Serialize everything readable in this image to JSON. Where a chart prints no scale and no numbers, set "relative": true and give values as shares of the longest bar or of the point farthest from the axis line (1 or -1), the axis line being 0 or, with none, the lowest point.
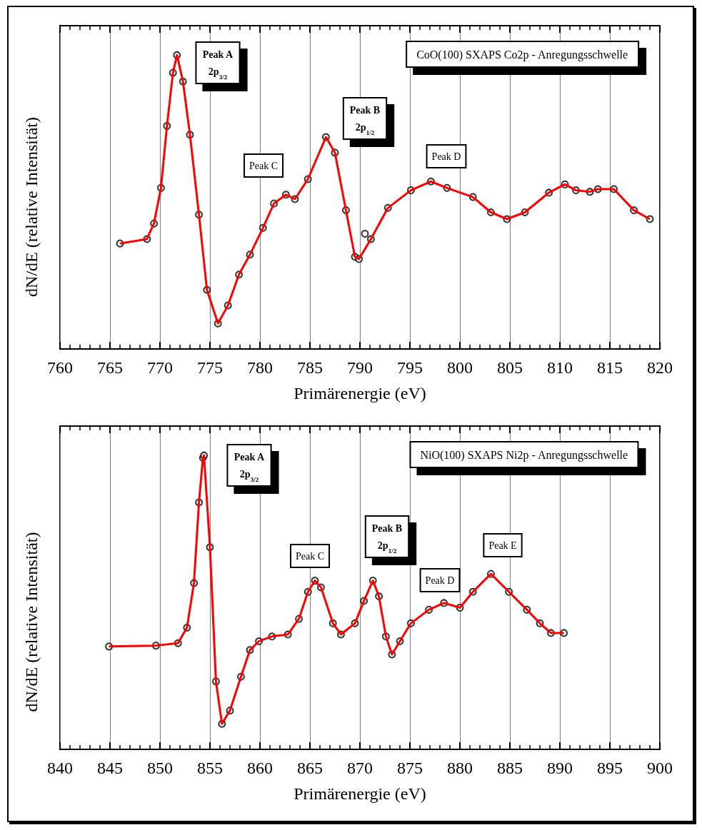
{
  "chart_data": [
    {
      "type": "scatter",
      "title": "CoO(100) SXAPS Co2p - Anregungsschwelle",
      "xlabel": "Primärenergie (eV)",
      "ylabel": "dN/dE (relative Intensität)",
      "relative": true,
      "xlim": [
        760,
        820
      ],
      "xticks": [
        760,
        765,
        770,
        775,
        780,
        785,
        790,
        795,
        800,
        805,
        810,
        815,
        820
      ],
      "grid": "x",
      "series": [
        {
          "marker": "circle",
          "color": "#000000",
          "x": [
            766.0,
            768.7,
            769.4,
            770.1,
            770.7,
            771.3,
            771.7,
            772.3,
            773.0,
            773.9,
            774.7,
            775.8,
            776.8,
            777.9,
            779.0,
            780.3,
            781.4,
            782.6,
            783.5,
            784.8,
            786.6,
            787.5,
            788.6,
            789.5,
            789.9,
            790.5,
            791.1,
            792.8,
            795.1,
            797.1,
            798.7,
            801.3,
            803.1,
            804.7,
            806.5,
            808.9,
            810.5,
            811.6,
            813.0,
            813.8,
            815.4,
            817.4,
            819.0
          ],
          "values": [
            0.359,
            0.374,
            0.427,
            0.548,
            0.759,
            0.94,
            1.0,
            0.91,
            0.729,
            0.457,
            0.201,
            0.087,
            0.148,
            0.253,
            0.321,
            0.412,
            0.495,
            0.525,
            0.51,
            0.578,
            0.721,
            0.668,
            0.472,
            0.314,
            0.306,
            0.392,
            0.374,
            0.48,
            0.54,
            0.57,
            0.548,
            0.517,
            0.465,
            0.442,
            0.465,
            0.532,
            0.56,
            0.54,
            0.535,
            0.544,
            0.544,
            0.472,
            0.442
          ]
        },
        {
          "type": "line",
          "color": "#ff0000",
          "x": [
            766.0,
            768.7,
            769.4,
            770.1,
            770.7,
            771.3,
            771.7,
            772.3,
            773.0,
            773.9,
            774.7,
            775.8,
            776.8,
            777.9,
            779.0,
            780.3,
            781.4,
            782.6,
            783.5,
            784.8,
            786.6,
            787.5,
            788.6,
            789.5,
            789.9,
            791.1,
            792.8,
            795.1,
            797.1,
            798.7,
            801.3,
            803.1,
            804.7,
            806.5,
            808.9,
            810.5,
            811.6,
            813.0,
            813.8,
            815.4,
            817.4,
            819.0
          ],
          "values": [
            0.359,
            0.374,
            0.427,
            0.548,
            0.759,
            0.94,
            1.0,
            0.91,
            0.729,
            0.457,
            0.201,
            0.087,
            0.148,
            0.253,
            0.321,
            0.412,
            0.495,
            0.525,
            0.51,
            0.578,
            0.721,
            0.668,
            0.472,
            0.314,
            0.306,
            0.374,
            0.48,
            0.54,
            0.57,
            0.548,
            0.517,
            0.465,
            0.442,
            0.465,
            0.532,
            0.56,
            0.54,
            0.535,
            0.544,
            0.544,
            0.472,
            0.442
          ]
        }
      ],
      "annotations": [
        "Peak A\n2p$_{3/2}$",
        "Peak B\n2p$_{1/2}$",
        "Peak C",
        "Peak D"
      ]
    },
    {
      "type": "scatter",
      "title": "NiO(100) SXAPS Ni2p - Anregungsschwelle",
      "xlabel": "Primärenergie (eV)",
      "ylabel": "dN/dE (relative Intensität)",
      "relative": true,
      "xlim": [
        840,
        900
      ],
      "xticks": [
        840,
        845,
        850,
        855,
        860,
        865,
        870,
        875,
        880,
        885,
        890,
        895,
        900
      ],
      "grid": "x",
      "series": [
        {
          "marker": "circle",
          "color": "#000000",
          "x": [
            844.9,
            849.6,
            851.8,
            852.7,
            853.4,
            853.9,
            854.3,
            854.4,
            855.0,
            855.6,
            856.2,
            857.0,
            858.1,
            859.0,
            859.9,
            861.2,
            862.8,
            863.9,
            864.8,
            865.5,
            866.1,
            867.3,
            868.1,
            869.5,
            870.4,
            871.3,
            871.9,
            872.6,
            873.2,
            874.0,
            875.1,
            876.9,
            878.4,
            880.0,
            881.3,
            883.1,
            884.9,
            886.7,
            888.0,
            889.1,
            890.4
          ],
          "values": [
            0.35,
            0.353,
            0.361,
            0.414,
            0.566,
            0.84,
            0.992,
            1.0,
            0.688,
            0.231,
            0.087,
            0.132,
            0.247,
            0.338,
            0.368,
            0.384,
            0.391,
            0.444,
            0.536,
            0.574,
            0.551,
            0.429,
            0.391,
            0.429,
            0.505,
            0.574,
            0.521,
            0.384,
            0.323,
            0.368,
            0.429,
            0.475,
            0.498,
            0.482,
            0.536,
            0.597,
            0.536,
            0.475,
            0.429,
            0.396,
            0.396
          ]
        },
        {
          "type": "line",
          "color": "#ff0000",
          "x": [
            844.9,
            849.6,
            851.8,
            852.7,
            853.4,
            853.9,
            854.3,
            854.4,
            855.0,
            855.6,
            856.2,
            857.0,
            858.1,
            859.0,
            859.9,
            861.2,
            862.8,
            863.9,
            864.8,
            865.5,
            866.1,
            867.3,
            868.1,
            869.5,
            870.4,
            871.3,
            871.9,
            872.6,
            873.2,
            874.0,
            875.1,
            876.9,
            878.4,
            880.0,
            881.3,
            883.1,
            884.9,
            886.7,
            888.0,
            889.1,
            890.4
          ],
          "values": [
            0.35,
            0.353,
            0.361,
            0.414,
            0.566,
            0.84,
            0.992,
            1.0,
            0.688,
            0.231,
            0.087,
            0.132,
            0.247,
            0.338,
            0.368,
            0.384,
            0.391,
            0.444,
            0.536,
            0.574,
            0.551,
            0.429,
            0.391,
            0.429,
            0.505,
            0.574,
            0.521,
            0.384,
            0.323,
            0.368,
            0.429,
            0.475,
            0.498,
            0.482,
            0.536,
            0.597,
            0.536,
            0.475,
            0.429,
            0.396,
            0.396
          ]
        }
      ],
      "annotations": [
        "Peak A\n2p$_{3/2}$",
        "Peak C",
        "Peak B\n2p$_{1/2}$",
        "Peak D",
        "Peak E"
      ]
    }
  ]
}
